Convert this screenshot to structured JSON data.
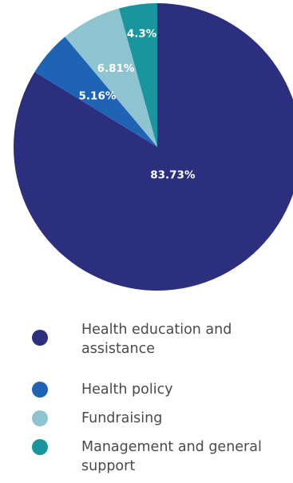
{
  "chart_data": {
    "type": "pie",
    "title": "",
    "slices": [
      {
        "label": "Health education and assistance",
        "value": 83.73,
        "display": "83.73%",
        "color": "#2b2f7e"
      },
      {
        "label": "Health policy",
        "value": 5.16,
        "display": "5.16%",
        "color": "#1f63b5"
      },
      {
        "label": "Fundraising",
        "value": 6.81,
        "display": "6.81%",
        "color": "#8ec4cf"
      },
      {
        "label": "Management and general support",
        "value": 4.3,
        "display": "4.3%",
        "color": "#19969d"
      }
    ],
    "start_angle_deg": 0,
    "direction": "clockwise",
    "legend_position": "bottom"
  },
  "legend": {
    "items": [
      {
        "label": "Health education and assistance",
        "color": "#2b2f7e"
      },
      {
        "label": "Health policy",
        "color": "#1f63b5"
      },
      {
        "label": "Fundraising",
        "color": "#8ec4cf"
      },
      {
        "label": "Management and general support",
        "color": "#19969d"
      }
    ]
  }
}
